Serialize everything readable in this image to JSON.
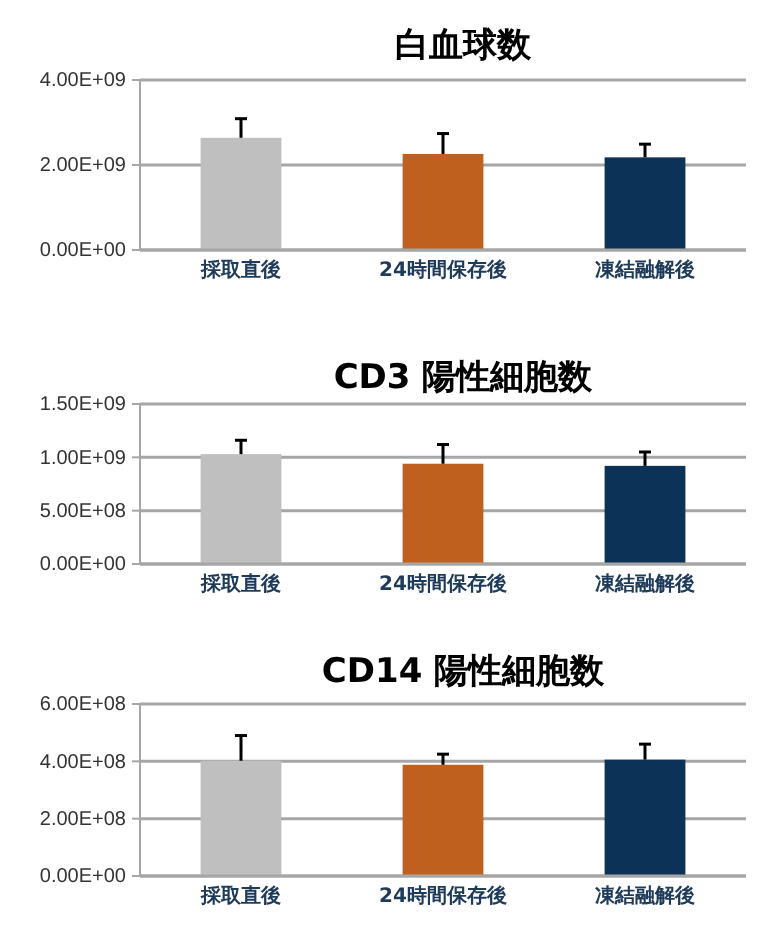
{
  "chart_data": [
    {
      "type": "bar",
      "title": "白血球数",
      "categories": [
        "採取直後",
        "24時間保存後",
        "凍結融解後"
      ],
      "values": [
        2640000000.0,
        2260000000.0,
        2180000000.0
      ],
      "colors": [
        "#bfbfbf",
        "#c0601f",
        "#0c3257"
      ],
      "errors": [
        [
          2640000000.0,
          3090000000.0
        ],
        [
          2260000000.0,
          2740000000.0
        ],
        [
          2180000000.0,
          2490000000.0
        ]
      ],
      "ylim": [
        0,
        4000000000.0
      ],
      "yticks": [
        {
          "value": 0,
          "label": "0.00E+00"
        },
        {
          "value": 2000000000.0,
          "label": "2.00E+09"
        },
        {
          "value": 4000000000.0,
          "label": "4.00E+09"
        }
      ],
      "grid": "y"
    },
    {
      "type": "bar",
      "title": "CD3 陽性細胞数",
      "categories": [
        "採取直後",
        "24時間保存後",
        "凍結融解後"
      ],
      "values": [
        1030000000.0,
        940000000.0,
        920000000.0
      ],
      "colors": [
        "#bfbfbf",
        "#c0601f",
        "#0c3257"
      ],
      "errors": [
        [
          1030000000.0,
          1160000000.0
        ],
        [
          940000000.0,
          1120000000.0
        ],
        [
          920000000.0,
          1050000000.0
        ]
      ],
      "ylim": [
        0,
        1500000000.0
      ],
      "yticks": [
        {
          "value": 0,
          "label": "0.00E+00"
        },
        {
          "value": 500000000.0,
          "label": "5.00E+08"
        },
        {
          "value": 1000000000.0,
          "label": "1.00E+09"
        },
        {
          "value": 1500000000.0,
          "label": "1.50E+09"
        }
      ],
      "grid": "y"
    },
    {
      "type": "bar",
      "title": "CD14 陽性細胞数",
      "categories": [
        "採取直後",
        "24時間保存後",
        "凍結融解後"
      ],
      "values": [
        402000000.0,
        388000000.0,
        406000000.0
      ],
      "colors": [
        "#bfbfbf",
        "#c0601f",
        "#0c3257"
      ],
      "errors": [
        [
          402000000.0,
          490000000.0
        ],
        [
          388000000.0,
          425000000.0
        ],
        [
          406000000.0,
          460000000.0
        ]
      ],
      "ylim": [
        0,
        600000000.0
      ],
      "yticks": [
        {
          "value": 0,
          "label": "0.00E+00"
        },
        {
          "value": 200000000.0,
          "label": "2.00E+08"
        },
        {
          "value": 400000000.0,
          "label": "4.00E+08"
        },
        {
          "value": 600000000.0,
          "label": "6.00E+08"
        }
      ],
      "grid": "y"
    }
  ]
}
